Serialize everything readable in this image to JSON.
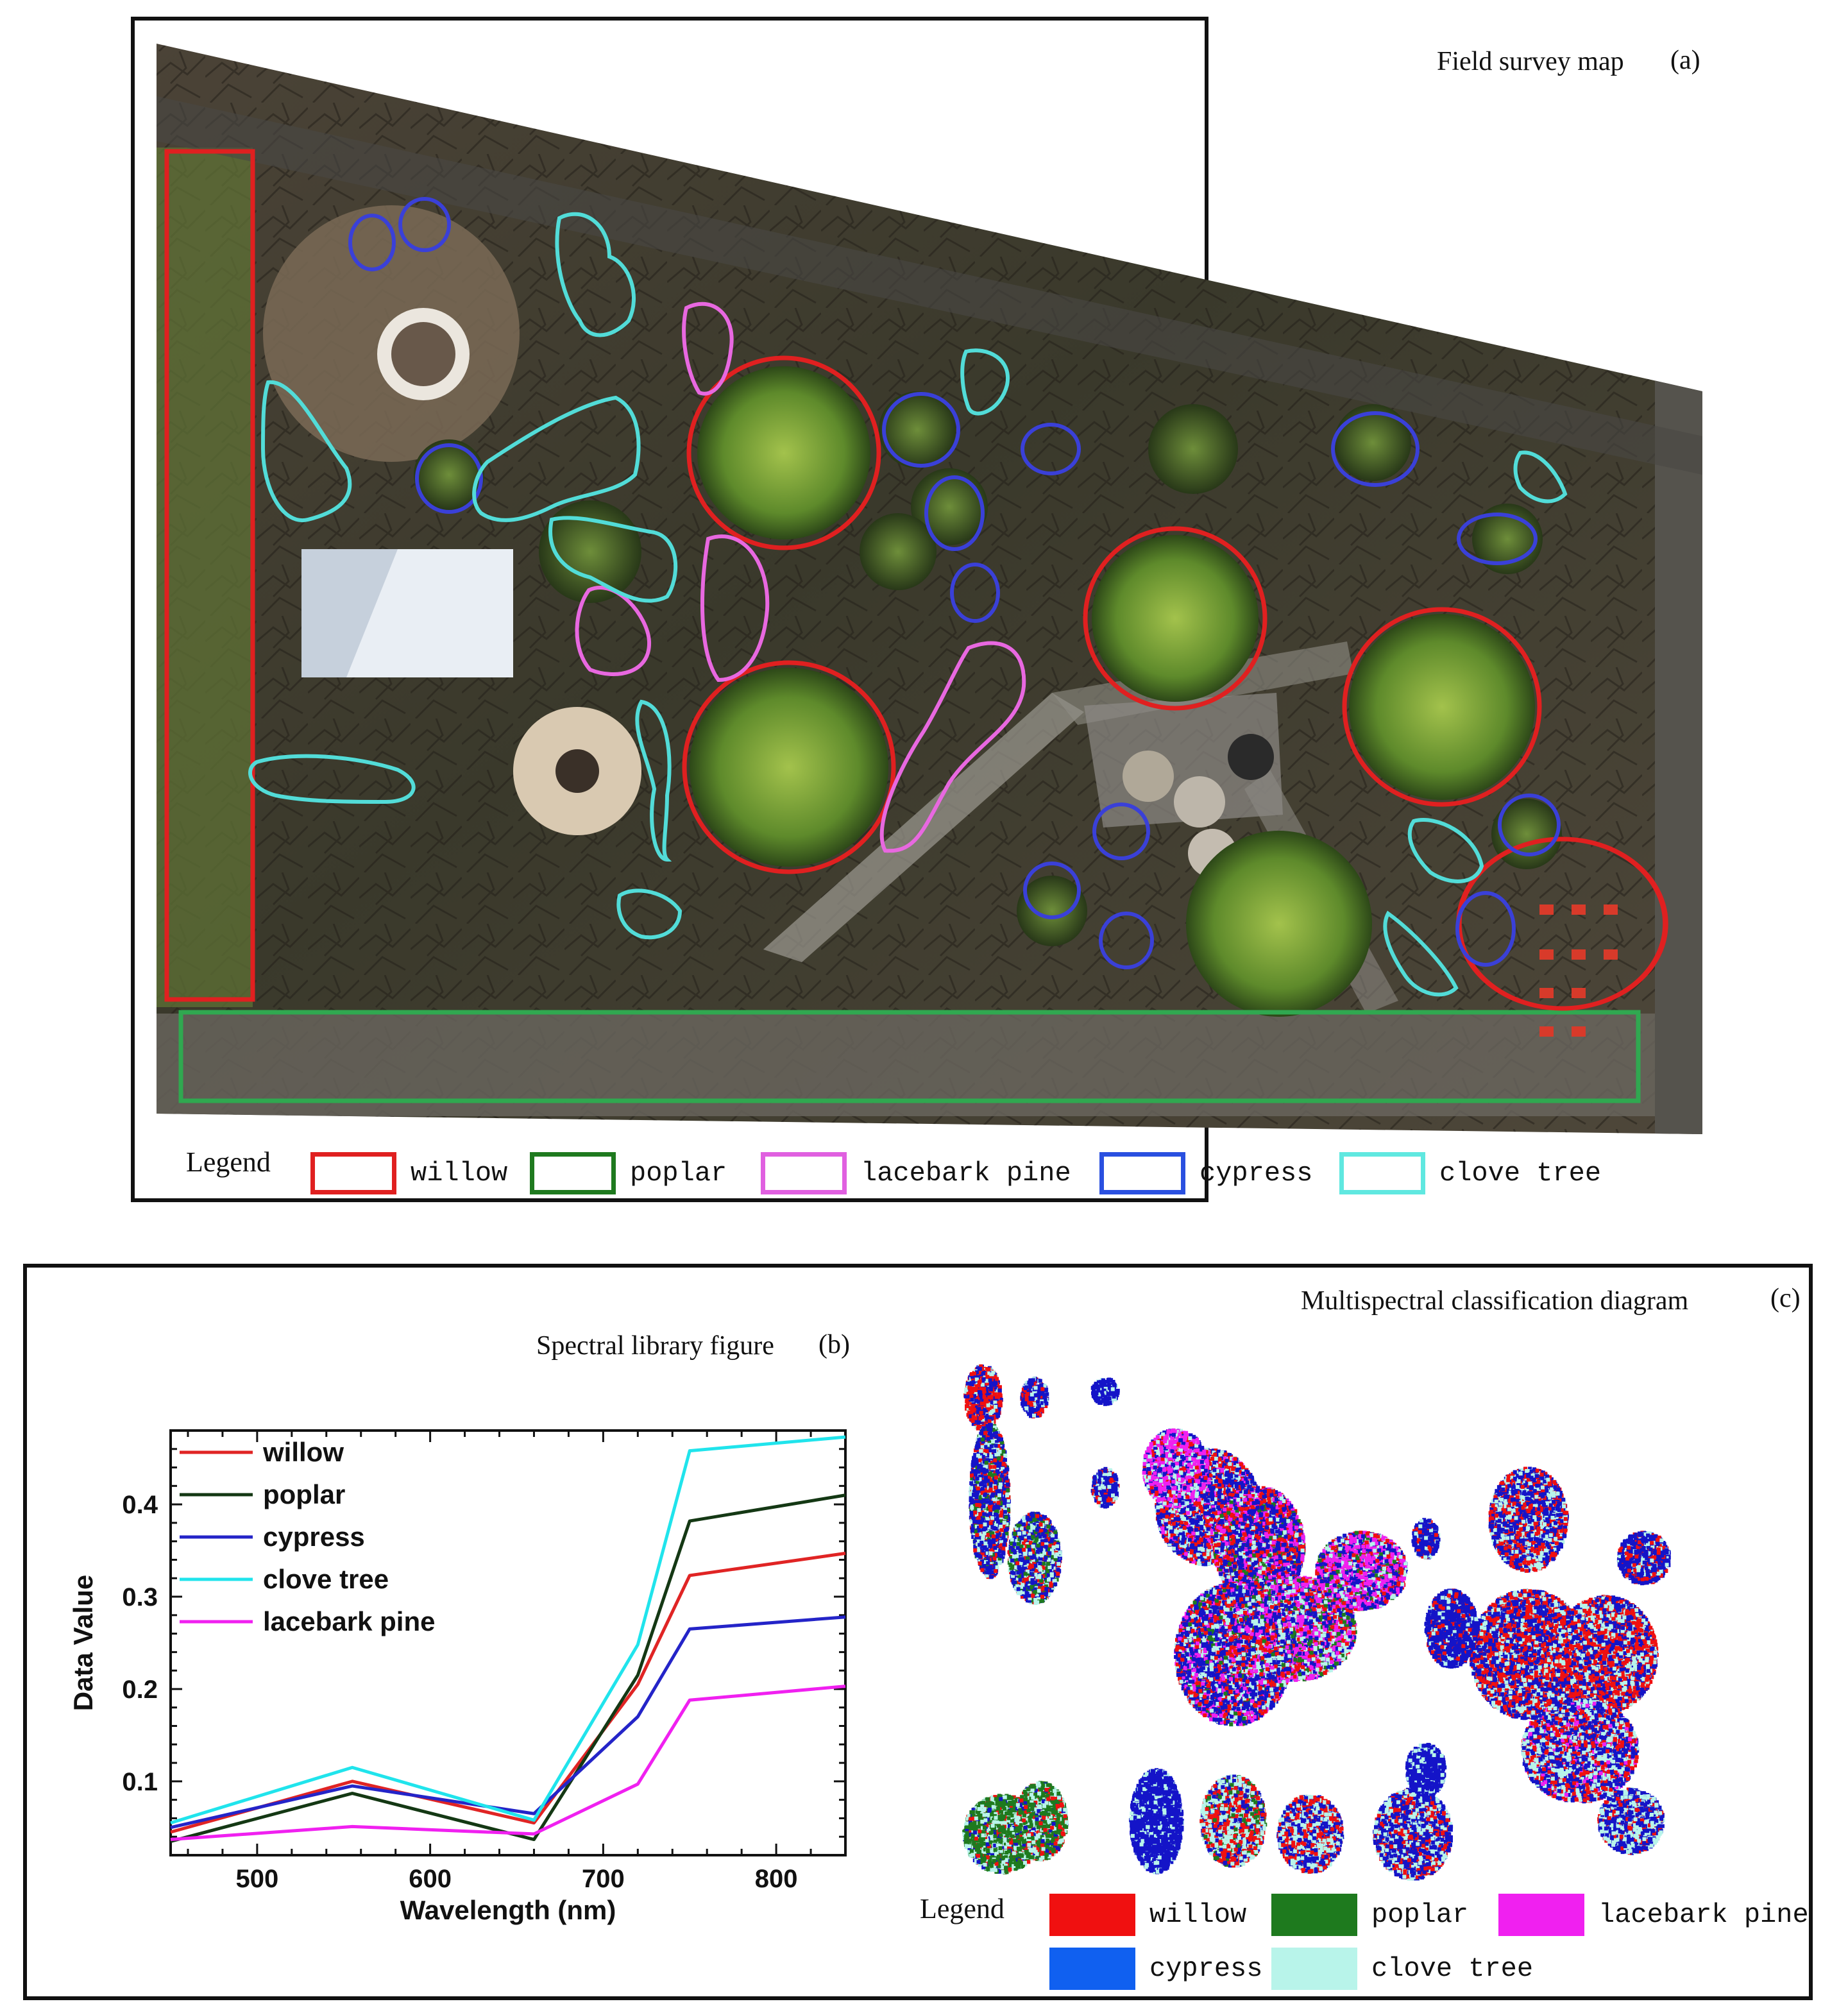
{
  "panel_a": {
    "title": "Field survey map",
    "label": "(a)",
    "legend_title": "Legend",
    "legend": [
      {
        "name": "willow",
        "color": "#e02020"
      },
      {
        "name": "poplar",
        "color": "#1f7a1f"
      },
      {
        "name": "lacebark pine",
        "color": "#e060e0"
      },
      {
        "name": "cypress",
        "color": "#2a50e0"
      },
      {
        "name": "clove tree",
        "color": "#60e8e0"
      }
    ]
  },
  "panel_b": {
    "title": "Spectral library figure",
    "label": "(b)"
  },
  "panel_c": {
    "title": "Multispectral classification diagram",
    "label": "(c)",
    "legend_title": "Legend",
    "legend": [
      {
        "name": "willow",
        "color": "#f01010"
      },
      {
        "name": "poplar",
        "color": "#1e7a1e"
      },
      {
        "name": "lacebark pine",
        "color": "#f020f0"
      },
      {
        "name": "cypress",
        "color": "#1060f0"
      },
      {
        "name": "clove tree",
        "color": "#b8f4ea"
      }
    ]
  },
  "chart_data": {
    "type": "line",
    "title": "Spectral library figure",
    "xlabel": "Wavelength (nm)",
    "ylabel": "Data Value",
    "xlim": [
      450,
      840
    ],
    "ylim": [
      0.02,
      0.48
    ],
    "xticks": [
      500,
      600,
      700,
      800
    ],
    "yticks": [
      0.1,
      0.2,
      0.3,
      0.4
    ],
    "xtick_labels": [
      "500",
      "600",
      "700",
      "800"
    ],
    "ytick_labels": [
      "0.1",
      "0.2",
      "0.3",
      "0.4"
    ],
    "legend_position": "top-left",
    "x": [
      450,
      555,
      660,
      720,
      750,
      840
    ],
    "series": [
      {
        "name": "willow",
        "color": "#e02424",
        "values": [
          0.045,
          0.1,
          0.055,
          0.205,
          0.323,
          0.347
        ]
      },
      {
        "name": "poplar",
        "color": "#143814",
        "values": [
          0.035,
          0.087,
          0.037,
          0.215,
          0.382,
          0.41
        ]
      },
      {
        "name": "cypress",
        "color": "#2424c8",
        "values": [
          0.05,
          0.095,
          0.065,
          0.17,
          0.265,
          0.278
        ]
      },
      {
        "name": "clove tree",
        "color": "#20e4ec",
        "values": [
          0.055,
          0.115,
          0.058,
          0.248,
          0.458,
          0.473
        ]
      },
      {
        "name": "lacebark pine",
        "color": "#f020f0",
        "values": [
          0.037,
          0.051,
          0.043,
          0.097,
          0.188,
          0.203
        ]
      }
    ]
  }
}
